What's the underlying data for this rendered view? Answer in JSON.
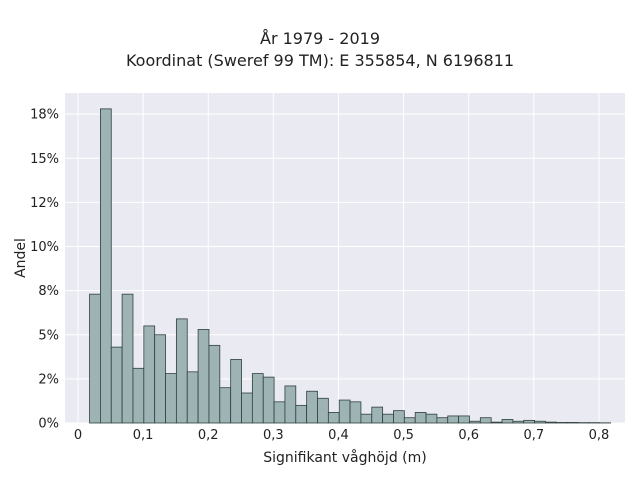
{
  "chart_data": {
    "type": "bar",
    "title_line1": "År 1979 - 2019",
    "title_line2": "Koordinat (Sweref 99 TM): E 355854, N 6196811",
    "xlabel": "Signifikant våghöjd (m)",
    "ylabel": "Andel",
    "xlim": [
      -0.02,
      0.84
    ],
    "ylim": [
      0,
      0.187
    ],
    "x_ticks": [
      {
        "value": 0,
        "label": "0"
      },
      {
        "value": 0.1,
        "label": "0,1"
      },
      {
        "value": 0.2,
        "label": "0,2"
      },
      {
        "value": 0.3,
        "label": "0,3"
      },
      {
        "value": 0.4,
        "label": "0,4"
      },
      {
        "value": 0.5,
        "label": "0,5"
      },
      {
        "value": 0.6,
        "label": "0,6"
      },
      {
        "value": 0.7,
        "label": "0,7"
      },
      {
        "value": 0.8,
        "label": "0,8"
      }
    ],
    "y_ticks": [
      {
        "value": 0,
        "label": "0%"
      },
      {
        "value": 0.025,
        "label": "2%"
      },
      {
        "value": 0.05,
        "label": "5%"
      },
      {
        "value": 0.075,
        "label": "8%"
      },
      {
        "value": 0.1,
        "label": "10%"
      },
      {
        "value": 0.125,
        "label": "12%"
      },
      {
        "value": 0.15,
        "label": "15%"
      },
      {
        "value": 0.175,
        "label": "18%"
      }
    ],
    "bin_width": 0.01667,
    "bin_edges_start": 0.0177,
    "values": [
      0.073,
      0.178,
      0.043,
      0.073,
      0.031,
      0.055,
      0.05,
      0.028,
      0.059,
      0.029,
      0.053,
      0.044,
      0.02,
      0.036,
      0.017,
      0.028,
      0.026,
      0.012,
      0.021,
      0.01,
      0.018,
      0.014,
      0.006,
      0.013,
      0.012,
      0.005,
      0.009,
      0.005,
      0.007,
      0.003,
      0.006,
      0.005,
      0.003,
      0.004,
      0.004,
      0.001,
      0.003,
      0.0005,
      0.002,
      0.001,
      0.0015,
      0.001,
      0.0005,
      0.0003,
      0.0003,
      0.0002,
      0.0002,
      0.0001
    ],
    "bar_color": "#9eb4b4",
    "bar_edge_color": "#2f3f3f",
    "background_color": "#eaeaf2",
    "grid": true
  }
}
